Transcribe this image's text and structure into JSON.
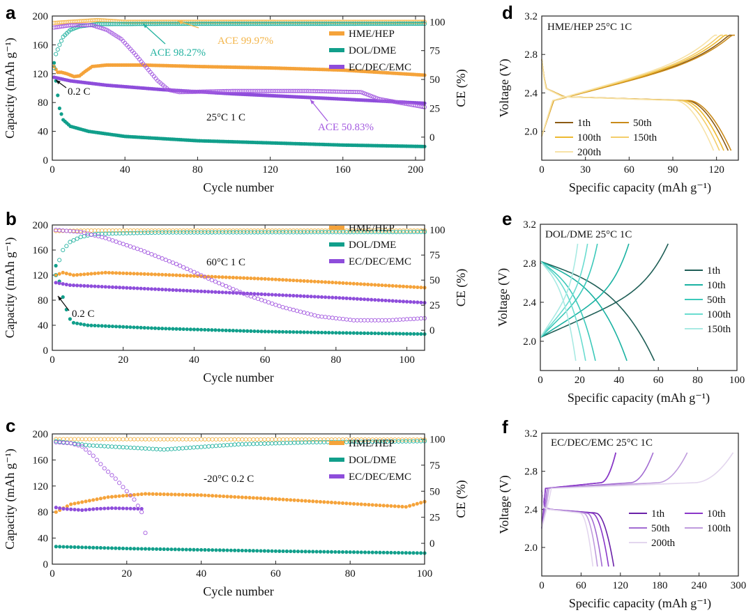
{
  "colors": {
    "hep": "#F5A33A",
    "dol": "#119F8B",
    "ec": "#8E4DDB",
    "ace_hep": "#F3B54A",
    "ace_dol": "#23B2A0",
    "ace_ec": "#A45BE0"
  },
  "chart_data": [
    {
      "panel": "a",
      "type": "scatter",
      "subtype": "cycling",
      "xlabel": "Cycle number",
      "ylabel": "Capacity (mAh g⁻¹)",
      "y2label": "CE (%)",
      "xlim": [
        0,
        205
      ],
      "ylim": [
        0,
        200
      ],
      "y2lim": [
        -20,
        105
      ],
      "xticks": [
        0,
        40,
        80,
        120,
        160,
        200
      ],
      "yticks": [
        0,
        40,
        80,
        120,
        160,
        200
      ],
      "y2ticks": [
        0,
        25,
        50,
        75,
        100
      ],
      "condition": "25°C  1 C",
      "legend": [
        "HME/HEP",
        "DOL/DME",
        "EC/DEC/EMC"
      ],
      "annotations": [
        {
          "text": "ACE 99.97%",
          "series": "HME/HEP"
        },
        {
          "text": "ACE 98.27%",
          "series": "DOL/DME"
        },
        {
          "text": "ACE 50.83%",
          "series": "EC/DEC/EMC"
        },
        {
          "text": "0.2 C",
          "series": ""
        }
      ],
      "series": [
        {
          "name": "HME/HEP",
          "kind": "capacity",
          "color": "#F5A33A",
          "n": 205,
          "points": [
            [
              1,
              130
            ],
            [
              2,
              126
            ],
            [
              3,
              122
            ],
            [
              5,
              122
            ],
            [
              8,
              120
            ],
            [
              12,
              116
            ],
            [
              15,
              117
            ],
            [
              18,
              123
            ],
            [
              22,
              130
            ],
            [
              30,
              132
            ],
            [
              50,
              132
            ],
            [
              80,
              130
            ],
            [
              120,
              128
            ],
            [
              160,
              125
            ],
            [
              205,
              118
            ]
          ]
        },
        {
          "name": "DOL/DME",
          "kind": "capacity",
          "color": "#119F8B",
          "n": 205,
          "points": [
            [
              1,
              135
            ],
            [
              2,
              110
            ],
            [
              3,
              90
            ],
            [
              4,
              72
            ],
            [
              6,
              56
            ],
            [
              10,
              47
            ],
            [
              20,
              40
            ],
            [
              40,
              33
            ],
            [
              80,
              27
            ],
            [
              120,
              24
            ],
            [
              160,
              21
            ],
            [
              205,
              19
            ]
          ]
        },
        {
          "name": "EC/DEC/EMC",
          "kind": "capacity",
          "color": "#8E4DDB",
          "n": 205,
          "points": [
            [
              1,
              115
            ],
            [
              10,
              110
            ],
            [
              30,
              104
            ],
            [
              60,
              98
            ],
            [
              100,
              92
            ],
            [
              150,
              86
            ],
            [
              205,
              79
            ]
          ]
        },
        {
          "name": "HME/HEP",
          "kind": "ce",
          "color": "#F3B54A",
          "n": 205,
          "points": [
            [
              1,
              99
            ],
            [
              10,
              100
            ],
            [
              25,
              101.5
            ],
            [
              40,
              100
            ],
            [
              205,
              99.9
            ]
          ]
        },
        {
          "name": "DOL/DME",
          "kind": "ce",
          "color": "#23B2A0",
          "n": 205,
          "points": [
            [
              1,
              60
            ],
            [
              2,
              72
            ],
            [
              4,
              80
            ],
            [
              6,
              87
            ],
            [
              10,
              93
            ],
            [
              15,
              96
            ],
            [
              25,
              98
            ],
            [
              60,
              98.2
            ],
            [
              205,
              98.3
            ]
          ]
        },
        {
          "name": "EC/DEC/EMC",
          "kind": "ce",
          "color": "#A45BE0",
          "n": 205,
          "points": [
            [
              1,
              95
            ],
            [
              10,
              97
            ],
            [
              22,
              97
            ],
            [
              30,
              93
            ],
            [
              38,
              85
            ],
            [
              45,
              73
            ],
            [
              52,
              60
            ],
            [
              58,
              49
            ],
            [
              64,
              41
            ],
            [
              70,
              39
            ],
            [
              100,
              40
            ],
            [
              140,
              40
            ],
            [
              170,
              39
            ],
            [
              180,
              33
            ],
            [
              205,
              26
            ]
          ]
        }
      ]
    },
    {
      "panel": "b",
      "type": "scatter",
      "subtype": "cycling",
      "xlabel": "Cycle number",
      "ylabel": "Capacity (mAh g⁻¹)",
      "y2label": "CE (%)",
      "xlim": [
        0,
        105
      ],
      "ylim": [
        0,
        200
      ],
      "y2lim": [
        -20,
        105
      ],
      "xticks": [
        0,
        20,
        40,
        60,
        80,
        100
      ],
      "yticks": [
        0,
        40,
        80,
        120,
        160,
        200
      ],
      "y2ticks": [
        0,
        25,
        50,
        75,
        100
      ],
      "condition": "60°C  1 C",
      "legend": [
        "HME/HEP",
        "DOL/DME",
        "EC/DEC/EMC"
      ],
      "annotations": [
        {
          "text": "0.2 C",
          "series": ""
        }
      ],
      "series": [
        {
          "name": "HME/HEP",
          "kind": "capacity",
          "color": "#F5A33A",
          "n": 105,
          "points": [
            [
              1,
              120
            ],
            [
              3,
              124
            ],
            [
              6,
              120
            ],
            [
              15,
              124
            ],
            [
              30,
              121
            ],
            [
              60,
              114
            ],
            [
              80,
              108
            ],
            [
              105,
              100
            ]
          ]
        },
        {
          "name": "DOL/DME",
          "kind": "capacity",
          "color": "#119F8B",
          "n": 105,
          "points": [
            [
              1,
              135
            ],
            [
              2,
              110
            ],
            [
              3,
              85
            ],
            [
              4,
              65
            ],
            [
              5,
              50
            ],
            [
              6,
              44
            ],
            [
              10,
              40
            ],
            [
              30,
              35
            ],
            [
              60,
              30
            ],
            [
              80,
              28
            ],
            [
              105,
              26
            ]
          ]
        },
        {
          "name": "EC/DEC/EMC",
          "kind": "capacity",
          "color": "#8E4DDB",
          "n": 105,
          "points": [
            [
              1,
              108
            ],
            [
              5,
              104
            ],
            [
              20,
              100
            ],
            [
              50,
              92
            ],
            [
              80,
              84
            ],
            [
              105,
              76
            ]
          ]
        },
        {
          "name": "HME/HEP",
          "kind": "ce",
          "color": "#F3B54A",
          "n": 105,
          "points": [
            [
              1,
              99
            ],
            [
              10,
              99.5
            ],
            [
              105,
              99.5
            ]
          ]
        },
        {
          "name": "DOL/DME",
          "kind": "ce",
          "color": "#23B2A0",
          "n": 105,
          "points": [
            [
              1,
              55
            ],
            [
              2,
              70
            ],
            [
              3,
              80
            ],
            [
              5,
              88
            ],
            [
              8,
              93
            ],
            [
              12,
              96
            ],
            [
              30,
              97.5
            ],
            [
              105,
              98
            ]
          ]
        },
        {
          "name": "EC/DEC/EMC",
          "kind": "ce",
          "color": "#A45BE0",
          "n": 105,
          "points": [
            [
              1,
              100
            ],
            [
              8,
              98
            ],
            [
              15,
              92
            ],
            [
              25,
              80
            ],
            [
              35,
              66
            ],
            [
              45,
              50
            ],
            [
              55,
              35
            ],
            [
              65,
              23
            ],
            [
              75,
              14
            ],
            [
              85,
              10
            ],
            [
              95,
              10
            ],
            [
              105,
              12
            ]
          ]
        }
      ]
    },
    {
      "panel": "c",
      "type": "scatter",
      "subtype": "cycling",
      "xlabel": "Cycle number",
      "ylabel": "Capacity (mAh g⁻¹)",
      "y2label": "CE (%)",
      "xlim": [
        0,
        100
      ],
      "ylim": [
        0,
        200
      ],
      "y2lim": [
        -20,
        105
      ],
      "xticks": [
        0,
        20,
        40,
        60,
        80,
        100
      ],
      "yticks": [
        0,
        40,
        80,
        120,
        160,
        200
      ],
      "y2ticks": [
        0,
        25,
        50,
        75,
        100
      ],
      "condition": "-20°C  0.2 C",
      "legend": [
        "HME/HEP",
        "DOL/DME",
        "EC/DEC/EMC"
      ],
      "annotations": [],
      "series": [
        {
          "name": "HME/HEP",
          "kind": "capacity",
          "color": "#F5A33A",
          "n": 100,
          "points": [
            [
              1,
              80
            ],
            [
              5,
              92
            ],
            [
              15,
              103
            ],
            [
              25,
              108
            ],
            [
              40,
              106
            ],
            [
              60,
              100
            ],
            [
              80,
              93
            ],
            [
              95,
              88
            ],
            [
              100,
              96
            ]
          ]
        },
        {
          "name": "DOL/DME",
          "kind": "capacity",
          "color": "#119F8B",
          "n": 100,
          "points": [
            [
              1,
              27
            ],
            [
              20,
              24
            ],
            [
              60,
              20
            ],
            [
              100,
              17
            ]
          ]
        },
        {
          "name": "EC/DEC/EMC",
          "kind": "capacity",
          "color": "#8E4DDB",
          "n": 24,
          "points": [
            [
              1,
              87
            ],
            [
              3,
              85
            ],
            [
              8,
              83
            ],
            [
              12,
              85
            ],
            [
              16,
              86
            ],
            [
              24,
              85
            ]
          ]
        },
        {
          "name": "HME/HEP",
          "kind": "ce",
          "color": "#F3B54A",
          "n": 100,
          "points": [
            [
              1,
              100
            ],
            [
              100,
              99.5
            ]
          ]
        },
        {
          "name": "DOL/DME",
          "kind": "ce",
          "color": "#23B2A0",
          "n": 100,
          "points": [
            [
              1,
              98
            ],
            [
              10,
              94
            ],
            [
              20,
              92
            ],
            [
              30,
              90
            ],
            [
              50,
              95
            ],
            [
              70,
              97
            ],
            [
              100,
              98
            ]
          ]
        },
        {
          "name": "EC/DEC/EMC",
          "kind": "ce",
          "color": "#A45BE0",
          "n": 25,
          "points": [
            [
              1,
              97
            ],
            [
              5,
              96
            ],
            [
              8,
              93
            ],
            [
              11,
              84
            ],
            [
              14,
              72
            ],
            [
              17,
              62
            ],
            [
              20,
              50
            ],
            [
              22,
              42
            ],
            [
              24,
              30
            ],
            [
              25,
              10
            ]
          ]
        }
      ]
    },
    {
      "panel": "d",
      "type": "line",
      "subtype": "voltage-profile",
      "title": "HME/HEP  25°C 1C",
      "xlabel": "Specific capacity (mAh g⁻¹)",
      "ylabel": "Voltage (V)",
      "xlim": [
        0,
        135
      ],
      "ylim": [
        1.7,
        3.2
      ],
      "xticks": [
        0,
        30,
        60,
        90,
        120
      ],
      "yticks": [
        2.0,
        2.4,
        2.8,
        3.2
      ],
      "legend_columns": 2,
      "series": [
        {
          "name": "1th",
          "color": "#8B5A14",
          "cap": 128
        },
        {
          "name": "50th",
          "color": "#C98A1A",
          "cap": 130
        },
        {
          "name": "100th",
          "color": "#EDB930",
          "cap": 125
        },
        {
          "name": "150th",
          "color": "#F3CD6A",
          "cap": 122
        },
        {
          "name": "200th",
          "color": "#F7E2A6",
          "cap": 118
        }
      ]
    },
    {
      "panel": "e",
      "type": "line",
      "subtype": "voltage-profile",
      "title": "DOL/DME  25°C 1C",
      "xlabel": "Specific capacity (mAh g⁻¹)",
      "ylabel": "Voltage (V)",
      "xlim": [
        0,
        100
      ],
      "ylim": [
        1.7,
        3.2
      ],
      "xticks": [
        0,
        20,
        40,
        60,
        80,
        100
      ],
      "yticks": [
        2.0,
        2.4,
        2.8,
        3.2
      ],
      "legend_columns": 1,
      "series": [
        {
          "name": "1th",
          "color": "#1E5E56",
          "cap": 58,
          "charge": 65
        },
        {
          "name": "10th",
          "color": "#1AB2A2",
          "cap": 44,
          "charge": 45
        },
        {
          "name": "50th",
          "color": "#3CC9BA",
          "cap": 28,
          "charge": 29
        },
        {
          "name": "100th",
          "color": "#6ADCD0",
          "cap": 23,
          "charge": 24
        },
        {
          "name": "150th",
          "color": "#A8EAE3",
          "cap": 18,
          "charge": 19
        }
      ]
    },
    {
      "panel": "f",
      "type": "line",
      "subtype": "voltage-profile",
      "title": "EC/DEC/EMC  25°C 1C",
      "xlabel": "Specific capacity (mAh g⁻¹)",
      "ylabel": "Voltage (V)",
      "xlim": [
        0,
        300
      ],
      "ylim": [
        1.7,
        3.2
      ],
      "xticks": [
        0,
        60,
        120,
        180,
        240,
        300
      ],
      "yticks": [
        2.0,
        2.4,
        2.8,
        3.2
      ],
      "legend_columns": 2,
      "series": [
        {
          "name": "1th",
          "color": "#6A21A8",
          "cap": 110,
          "charge": 113
        },
        {
          "name": "10th",
          "color": "#8A37C9",
          "cap": 102,
          "charge": 113
        },
        {
          "name": "50th",
          "color": "#A26BD2",
          "cap": 92,
          "charge": 170
        },
        {
          "name": "100th",
          "color": "#BF9BDD",
          "cap": 85,
          "charge": 222
        },
        {
          "name": "200th",
          "color": "#E3D6EE",
          "cap": 78,
          "charge": 292
        }
      ]
    }
  ]
}
